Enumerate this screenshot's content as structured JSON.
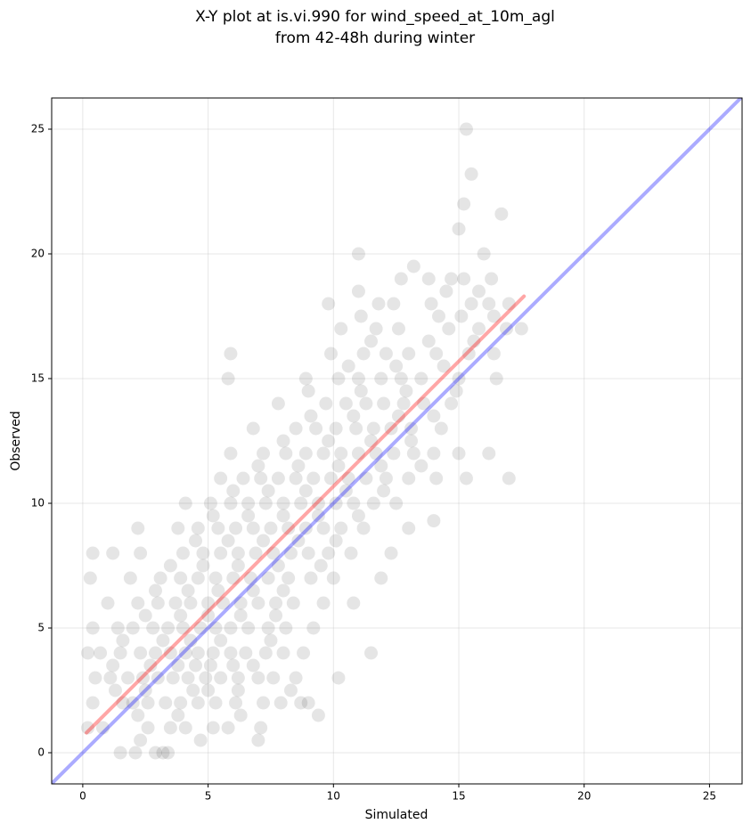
{
  "chart_data": {
    "type": "scatter",
    "title": [
      "X-Y plot at is.vi.990 for wind_speed_at_10m_agl",
      "from 42-48h during winter"
    ],
    "x_label": "Simulated",
    "y_label": "Observed",
    "xlim": [
      -1.24,
      26.3
    ],
    "ylim": [
      -1.25,
      26.25
    ],
    "xticks": [
      0,
      5,
      10,
      15,
      20,
      25
    ],
    "yticks": [
      0,
      5,
      10,
      15,
      20,
      25
    ],
    "grid": true,
    "series": [
      {
        "type": "scatter",
        "color": "#000000",
        "opacity": 0.1,
        "x": [
          1.5,
          2.1,
          2.9,
          3.2,
          3.4,
          2.3,
          4.7,
          7.0,
          0.2,
          0.8,
          2.6,
          3.5,
          4.1,
          5.2,
          5.8,
          7.1,
          2.2,
          3.8,
          6.3,
          9.4,
          0.4,
          1.6,
          2.0,
          2.6,
          3.3,
          3.9,
          4.6,
          5.3,
          6.1,
          7.2,
          7.9,
          8.7,
          9.0,
          1.3,
          2.5,
          4.4,
          5.0,
          6.2,
          8.3,
          0.5,
          1.1,
          1.8,
          2.4,
          3.0,
          3.6,
          4.2,
          4.9,
          5.5,
          6.2,
          7.0,
          7.6,
          8.5,
          10.2,
          1.2,
          2.7,
          3.8,
          4.5,
          5.1,
          6.0,
          6.8,
          0.2,
          0.7,
          1.5,
          2.3,
          2.9,
          3.5,
          4.1,
          4.6,
          5.2,
          5.9,
          6.5,
          7.3,
          8.0,
          8.8,
          11.5,
          1.6,
          3.2,
          4.3,
          5.5,
          7.5,
          0.4,
          1.4,
          2.0,
          2.8,
          3.4,
          4.0,
          4.7,
          5.3,
          5.9,
          6.6,
          7.4,
          8.1,
          9.2,
          2.5,
          3.9,
          5.0,
          6.3,
          7.7,
          1.0,
          2.2,
          3.0,
          3.7,
          4.3,
          5.0,
          5.6,
          6.3,
          7.0,
          7.7,
          8.4,
          9.6,
          10.8,
          2.9,
          4.2,
          5.4,
          6.8,
          8.0,
          0.3,
          1.9,
          3.1,
          3.9,
          4.6,
          5.3,
          6.0,
          6.7,
          7.4,
          8.2,
          9.1,
          10.0,
          11.9,
          3.5,
          4.8,
          6.2,
          7.8,
          9.5,
          0.4,
          1.2,
          2.3,
          4.0,
          4.8,
          5.5,
          6.2,
          6.9,
          7.6,
          8.3,
          9.0,
          9.8,
          10.7,
          12.3,
          4.5,
          5.8,
          7.2,
          8.6,
          10.1,
          2.2,
          3.8,
          4.6,
          5.4,
          6.1,
          6.8,
          7.5,
          8.2,
          8.9,
          9.6,
          10.3,
          11.2,
          13.0,
          14.0,
          5.2,
          6.6,
          8.0,
          9.4,
          11.0,
          4.1,
          5.1,
          5.9,
          6.6,
          7.3,
          8.0,
          8.7,
          9.4,
          10.1,
          10.8,
          11.6,
          12.5,
          6.0,
          7.4,
          8.9,
          10.5,
          12.0,
          5.5,
          6.4,
          7.1,
          7.8,
          8.5,
          9.2,
          9.9,
          10.6,
          11.3,
          12.1,
          13.0,
          14.1,
          15.3,
          17.0,
          7.0,
          8.6,
          10.2,
          11.9,
          13.5,
          5.9,
          7.2,
          8.1,
          8.9,
          9.6,
          10.3,
          11.0,
          11.7,
          12.4,
          13.2,
          14.0,
          15.0,
          16.2,
          8.0,
          9.8,
          11.5,
          13.1,
          6.8,
          8.5,
          9.3,
          10.1,
          10.9,
          11.6,
          12.3,
          13.1,
          14.3,
          9.1,
          10.8,
          12.6,
          14.0,
          7.8,
          9.7,
          10.5,
          11.3,
          12.0,
          12.8,
          13.6,
          14.7,
          9.0,
          11.1,
          12.9,
          14.9,
          5.8,
          8.9,
          10.2,
          11.0,
          11.9,
          12.7,
          13.5,
          15.0,
          16.5,
          10.6,
          12.5,
          14.4,
          5.9,
          9.9,
          11.2,
          12.1,
          13.0,
          14.1,
          15.4,
          16.4,
          11.5,
          13.8,
          15.6,
          10.3,
          11.7,
          12.6,
          14.6,
          15.8,
          16.9,
          17.5,
          11.1,
          14.2,
          15.1,
          16.4,
          9.8,
          11.8,
          12.4,
          13.9,
          15.5,
          16.2,
          17.0,
          11.0,
          14.5,
          15.8,
          12.7,
          13.8,
          14.7,
          15.2,
          16.3,
          13.2,
          11.0,
          16.0,
          15.0,
          16.7,
          15.2,
          15.5,
          15.3
        ],
        "values": [
          0,
          0,
          0,
          0,
          0,
          0.5,
          0.5,
          0.5,
          1,
          1,
          1,
          1,
          1,
          1,
          1,
          1,
          1.5,
          1.5,
          1.5,
          1.5,
          2,
          2,
          2,
          2,
          2,
          2,
          2,
          2,
          2,
          2,
          2,
          2,
          2,
          2.5,
          2.5,
          2.5,
          2.5,
          2.5,
          2.5,
          3,
          3,
          3,
          3,
          3,
          3,
          3,
          3,
          3,
          3,
          3,
          3,
          3,
          3,
          3.5,
          3.5,
          3.5,
          3.5,
          3.5,
          3.5,
          3.5,
          4,
          4,
          4,
          4,
          4,
          4,
          4,
          4,
          4,
          4,
          4,
          4,
          4,
          4,
          4,
          4.5,
          4.5,
          4.5,
          4.5,
          4.5,
          5,
          5,
          5,
          5,
          5,
          5,
          5,
          5,
          5,
          5,
          5,
          5,
          5,
          5.5,
          5.5,
          5.5,
          5.5,
          5.5,
          6,
          6,
          6,
          6,
          6,
          6,
          6,
          6,
          6,
          6,
          6,
          6,
          6,
          6.5,
          6.5,
          6.5,
          6.5,
          6.5,
          7,
          7,
          7,
          7,
          7,
          7,
          7,
          7,
          7,
          7,
          7,
          7,
          7,
          7.5,
          7.5,
          7.5,
          7.5,
          7.5,
          8,
          8,
          8,
          8,
          8,
          8,
          8,
          8,
          8,
          8,
          8,
          8,
          8,
          8,
          8.5,
          8.5,
          8.5,
          8.5,
          8.5,
          9,
          9,
          9,
          9,
          9,
          9,
          9,
          9,
          9,
          9,
          9,
          9,
          9,
          9.3,
          9.5,
          9.5,
          9.5,
          9.5,
          9.5,
          10,
          10,
          10,
          10,
          10,
          10,
          10,
          10,
          10,
          10,
          10,
          10,
          10.5,
          10.5,
          10.5,
          10.5,
          10.5,
          11,
          11,
          11,
          11,
          11,
          11,
          11,
          11,
          11,
          11,
          11,
          11,
          11,
          11,
          11.5,
          11.5,
          11.5,
          11.5,
          11.5,
          12,
          12,
          12,
          12,
          12,
          12,
          12,
          12,
          12,
          12,
          12,
          12,
          12,
          12.5,
          12.5,
          12.5,
          12.5,
          13,
          13,
          13,
          13,
          13,
          13,
          13,
          13,
          13,
          13.5,
          13.5,
          13.5,
          13.5,
          14,
          14,
          14,
          14,
          14,
          14,
          14,
          14,
          14.5,
          14.5,
          14.5,
          14.5,
          15,
          15,
          15,
          15,
          15,
          15,
          15,
          15,
          15,
          15.5,
          15.5,
          15.5,
          16,
          16,
          16,
          16,
          16,
          16,
          16,
          16,
          16.5,
          16.5,
          16.5,
          17,
          17,
          17,
          17,
          17,
          17,
          17,
          17.5,
          17.5,
          17.5,
          17.5,
          18,
          18,
          18,
          18,
          18,
          18,
          18,
          18.5,
          18.5,
          18.5,
          19,
          19,
          19,
          19,
          19,
          19.5,
          20,
          20,
          21,
          21.6,
          22,
          23.2,
          25
        ]
      },
      {
        "type": "line",
        "color": "#ff0000",
        "opacity": 0.35,
        "x": [
          0.15,
          17.6
        ],
        "values": [
          0.8,
          18.3
        ]
      },
      {
        "type": "line",
        "color": "#0000ff",
        "opacity": 0.33,
        "x": [
          -1.24,
          26.3
        ],
        "values": [
          -1.24,
          26.3
        ]
      }
    ]
  }
}
